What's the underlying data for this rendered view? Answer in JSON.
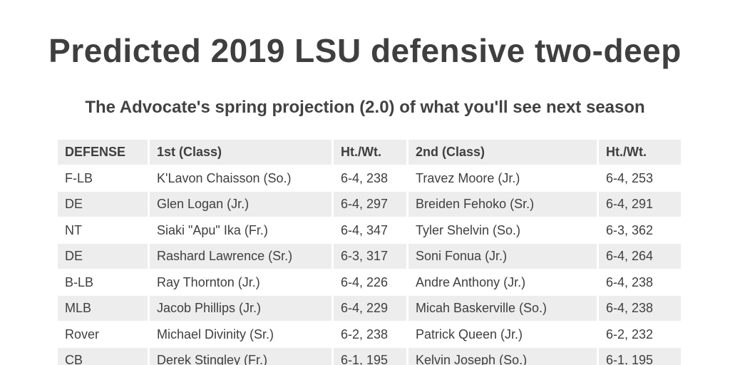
{
  "header": {
    "title": "Predicted 2019 LSU defensive two-deep",
    "subtitle": "The Advocate's spring projection (2.0) of what you'll see next season"
  },
  "colors": {
    "background": "#ffffff",
    "row_shade": "#ededed",
    "text": "#3f3f3f"
  },
  "chart_data": {
    "type": "table",
    "title": "Predicted 2019 LSU defensive two-deep",
    "subtitle": "The Advocate's spring projection (2.0) of what you'll see next season",
    "columns": [
      "DEFENSE",
      "1st (Class)",
      "Ht./Wt.",
      "2nd (Class)",
      "Ht./Wt."
    ],
    "rows": [
      [
        "F-LB",
        "K'Lavon Chaisson (So.)",
        "6-4, 238",
        "Travez Moore (Jr.)",
        "6-4, 253"
      ],
      [
        "DE",
        "Glen Logan (Jr.)",
        "6-4, 297",
        "Breiden Fehoko (Sr.)",
        "6-4, 291"
      ],
      [
        "NT",
        "Siaki \"Apu\" Ika (Fr.)",
        "6-4, 347",
        "Tyler Shelvin (So.)",
        "6-3, 362"
      ],
      [
        "DE",
        "Rashard Lawrence (Sr.)",
        "6-3, 317",
        "Soni Fonua (Jr.)",
        "6-4, 264"
      ],
      [
        "B-LB",
        "Ray Thornton (Jr.)",
        "6-4, 226",
        "Andre Anthony (Jr.)",
        "6-4, 238"
      ],
      [
        "MLB",
        "Jacob Phillips (Jr.)",
        "6-4, 229",
        "Micah Baskerville (So.)",
        "6-4, 238"
      ],
      [
        "Rover",
        "Michael Divinity (Sr.)",
        "6-2, 238",
        "Patrick Queen (Jr.)",
        "6-2, 232"
      ],
      [
        "CB",
        "Derek Stingley (Fr.)",
        "6-1, 195",
        "Kelvin Joseph (So.)",
        "6-1, 195"
      ]
    ],
    "layout": {
      "header_row_shaded": true,
      "alternating_rows": "white / light-gray starting white after header",
      "last_row_clipped_at_bottom": true
    }
  }
}
